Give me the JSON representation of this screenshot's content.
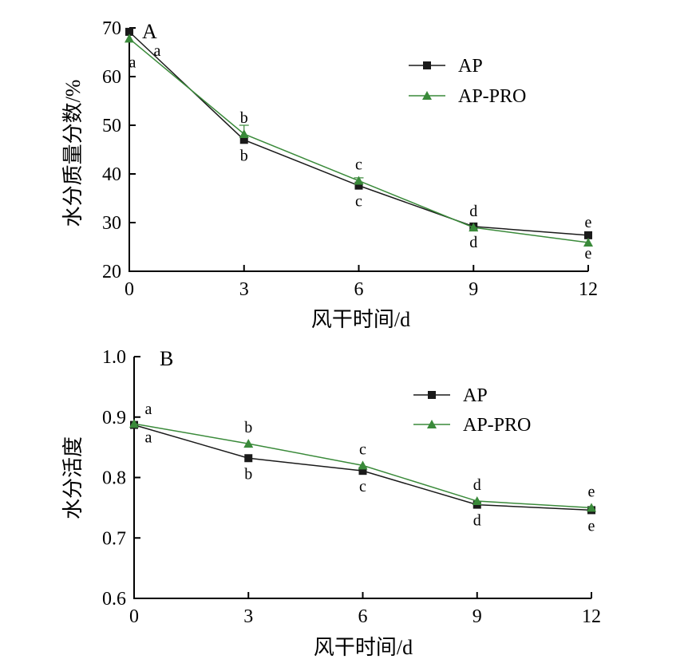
{
  "colors": {
    "AP": "#1a1a1a",
    "AP-PRO": "#3a8a3a"
  },
  "chart_data": [
    {
      "type": "line",
      "panel": "A",
      "x": [
        0,
        3,
        6,
        9,
        12
      ],
      "xticks": [
        "0",
        "3",
        "6",
        "9",
        "12"
      ],
      "yticks": [
        "20",
        "30",
        "40",
        "50",
        "60",
        "70"
      ],
      "xlim": [
        0,
        12
      ],
      "ylim": [
        20,
        70
      ],
      "xlabel": "风干时间/d",
      "ylabel": "水分质量分数/%",
      "legend_position": "top-right",
      "series": [
        {
          "name": "AP",
          "marker": "square",
          "values": [
            69.2,
            47.0,
            37.6,
            29.2,
            27.4
          ],
          "labels": [
            "a",
            "b",
            "c",
            "d",
            "e"
          ]
        },
        {
          "name": "AP-PRO",
          "marker": "triangle",
          "values": [
            67.8,
            48.2,
            38.6,
            29.0,
            25.9
          ],
          "error": [
            0,
            1.8,
            0.6,
            0,
            0
          ],
          "labels": [
            "a",
            "b",
            "c",
            "d",
            "e"
          ]
        }
      ]
    },
    {
      "type": "line",
      "panel": "B",
      "x": [
        0,
        3,
        6,
        9,
        12
      ],
      "xticks": [
        "0",
        "3",
        "6",
        "9",
        "12"
      ],
      "yticks": [
        "0.6",
        "0.7",
        "0.8",
        "0.9",
        "1.0"
      ],
      "xlim": [
        0,
        12
      ],
      "ylim": [
        0.6,
        1.0
      ],
      "xlabel": "风干时间/d",
      "ylabel": "水分活度",
      "legend_position": "top-right",
      "series": [
        {
          "name": "AP",
          "marker": "square",
          "values": [
            0.887,
            0.832,
            0.811,
            0.755,
            0.746
          ],
          "labels": [
            "a",
            "b",
            "c",
            "d",
            "e"
          ]
        },
        {
          "name": "AP-PRO",
          "marker": "triangle",
          "values": [
            0.889,
            0.856,
            0.82,
            0.761,
            0.75
          ],
          "labels": [
            "a",
            "b",
            "c",
            "d",
            "e"
          ]
        }
      ]
    }
  ]
}
